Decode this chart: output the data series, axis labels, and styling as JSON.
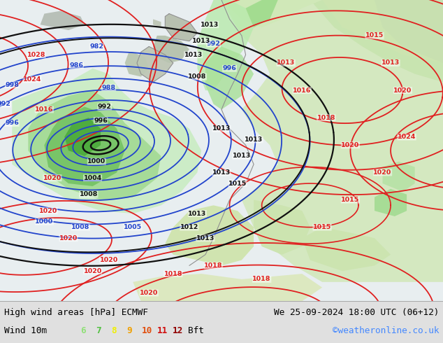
{
  "title_left": "High wind areas [hPa] ECMWF",
  "title_right": "We 25-09-2024 18:00 UTC (06+12)",
  "legend_label": "Wind 10m",
  "legend_values": [
    "6",
    "7",
    "8",
    "9",
    "10",
    "11",
    "12"
  ],
  "bft_colors": [
    "#b0e8a0",
    "#78d060",
    "#50b840",
    "#30a030",
    "#208820",
    "#107010",
    "#005800"
  ],
  "legend_unit": "Bft",
  "credit": "©weatheronline.co.uk",
  "bottom_bar_color": "#e0e0e0",
  "bottom_text_color": "#000000",
  "credit_color": "#4488FF",
  "ocean_bg": "#e8eef0",
  "land_bg": "#d8ead0",
  "isobar_red": "#e02020",
  "isobar_blue": "#2244cc",
  "isobar_black": "#101010",
  "coast_color": "#888888"
}
